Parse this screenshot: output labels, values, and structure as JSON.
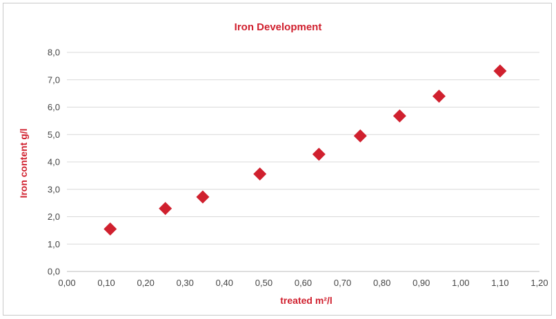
{
  "chart_data": {
    "type": "scatter",
    "title": "Iron Development",
    "xlabel": "treated m²/l",
    "ylabel": "Iron content g/l",
    "xlim": [
      0.0,
      1.2
    ],
    "ylim": [
      0.0,
      8.0
    ],
    "x_ticks": [
      "0,00",
      "0,10",
      "0,20",
      "0,30",
      "0,40",
      "0,50",
      "0,60",
      "0,70",
      "0,80",
      "0,90",
      "1,00",
      "1,10",
      "1,20"
    ],
    "y_ticks": [
      "0,0",
      "1,0",
      "2,0",
      "3,0",
      "4,0",
      "5,0",
      "6,0",
      "7,0",
      "8,0"
    ],
    "grid": "horizontal",
    "legend": "none",
    "marker_color": "#d0202e",
    "marker_shape": "diamond",
    "series": [
      {
        "x": [
          0.11,
          0.25,
          0.345,
          0.49,
          0.64,
          0.745,
          0.845,
          0.945,
          1.1
        ],
        "y": [
          1.55,
          2.3,
          2.72,
          3.56,
          4.28,
          4.95,
          5.68,
          6.4,
          7.32
        ]
      }
    ]
  }
}
